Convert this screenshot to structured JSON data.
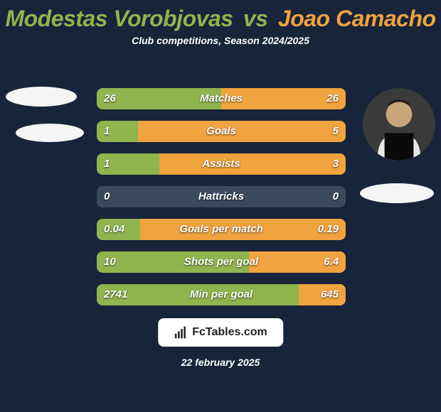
{
  "colors": {
    "bg": "#17243a",
    "p1": "#8eb54e",
    "p2": "#f0a33e",
    "bar_base": "#3a4a5e",
    "text": "#ffffff"
  },
  "title": {
    "p1": "Modestas Vorobjovas",
    "vs": "vs",
    "p2": "Joao Camacho"
  },
  "subtitle": "Club competitions, Season 2024/2025",
  "stats": [
    {
      "label": "Matches",
      "v1": "26",
      "v2": "26",
      "w1": 50,
      "w2": 50
    },
    {
      "label": "Goals",
      "v1": "1",
      "v2": "5",
      "w1": 16.7,
      "w2": 83.3
    },
    {
      "label": "Assists",
      "v1": "1",
      "v2": "3",
      "w1": 25,
      "w2": 75
    },
    {
      "label": "Hattricks",
      "v1": "0",
      "v2": "0",
      "w1": 0,
      "w2": 0
    },
    {
      "label": "Goals per match",
      "v1": "0.04",
      "v2": "0.19",
      "w1": 17.4,
      "w2": 82.6
    },
    {
      "label": "Shots per goal",
      "v1": "10",
      "v2": "6.4",
      "w1": 61,
      "w2": 39
    },
    {
      "label": "Min per goal",
      "v1": "2741",
      "v2": "645",
      "w1": 81,
      "w2": 19
    }
  ],
  "footer": {
    "brand_prefix": "Fc",
    "brand_suffix": "Tables.com",
    "date": "22 february 2025"
  }
}
